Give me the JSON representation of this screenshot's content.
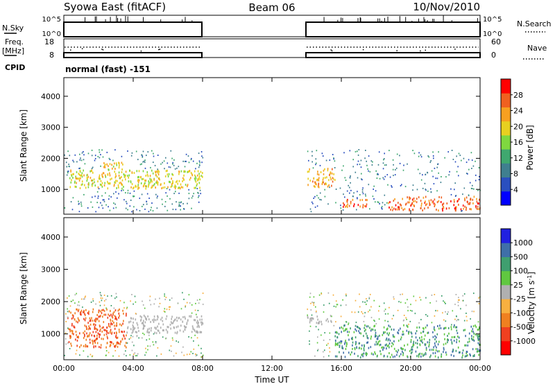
{
  "header": {
    "title_left": "Syowa East (fitACF)",
    "title_center": "Beam 06",
    "title_right": "10/Nov/2010"
  },
  "strips": {
    "nsky_label": "N.Sky",
    "nsearch_label": "N.Search",
    "nsky_ticks": [
      "10^5",
      "10^0"
    ],
    "nsearch_ticks": [
      "10^5",
      "10^0"
    ],
    "freq_label_line1": "Freq.",
    "freq_label_line2": "[MHz]",
    "freq_ticks": [
      "18",
      "8"
    ],
    "nave_label": "Nave",
    "nave_ticks": [
      "60",
      "0"
    ],
    "cpid_label": "CPID",
    "cpid_value": "normal (fast) -151"
  },
  "colors": {
    "power": [
      "#0000ff",
      "#2a4fbf",
      "#3f7f8f",
      "#3fa86f",
      "#7fd83f",
      "#e8d020",
      "#f8a020",
      "#f06020",
      "#ff0000"
    ],
    "velocity": [
      "#ff0000",
      "#f04020",
      "#f08020",
      "#f8b040",
      "#b0b0b0",
      "#60c840",
      "#3f9f6f",
      "#3f6fa8",
      "#2020e0"
    ],
    "ground_scatter": "#b0b0b0"
  },
  "chart_data": [
    {
      "type": "heatmap",
      "title": "",
      "xlabel": "Time UT",
      "ylabel": "Slant Range [km]",
      "xlim": [
        "00:00",
        "00:00"
      ],
      "x_ticks": [
        "00:00",
        "04:00",
        "08:00",
        "12:00",
        "16:00",
        "20:00",
        "00:00"
      ],
      "ylim": [
        200,
        4600
      ],
      "y_ticks": [
        1000,
        2000,
        3000,
        4000
      ],
      "colorbar": {
        "label": "Power [dB]",
        "ticks": [
          4,
          8,
          12,
          16,
          20,
          24,
          28
        ],
        "range": [
          0,
          30
        ]
      },
      "data_gaps": [
        {
          "start": "08:00",
          "end": "14:00"
        }
      ],
      "features": [
        {
          "t0": 0.3,
          "t1": 8.0,
          "r0": 1050,
          "r1": 1650,
          "level": 18
        },
        {
          "t0": 2.2,
          "t1": 3.4,
          "r0": 1400,
          "r1": 1900,
          "level": 20
        },
        {
          "t0": 14.0,
          "t1": 15.6,
          "r0": 1100,
          "r1": 1700,
          "level": 22
        },
        {
          "t0": 16.0,
          "t1": 17.6,
          "r0": 450,
          "r1": 700,
          "level": 26
        },
        {
          "t0": 18.6,
          "t1": 24.0,
          "r0": 350,
          "r1": 800,
          "level": 26
        }
      ]
    },
    {
      "type": "heatmap",
      "title": "",
      "xlabel": "Time UT",
      "ylabel": "Slant Range [km]",
      "xlim": [
        "00:00",
        "00:00"
      ],
      "x_ticks": [
        "00:00",
        "04:00",
        "08:00",
        "12:00",
        "16:00",
        "20:00",
        "00:00"
      ],
      "ylim": [
        200,
        4600
      ],
      "y_ticks": [
        1000,
        2000,
        3000,
        4000
      ],
      "colorbar": {
        "label": "Velocity [m s-1]",
        "ticks": [
          1000,
          500,
          100,
          25,
          -25,
          -100,
          -500,
          -1000
        ]
      },
      "data_gaps": [
        {
          "start": "08:00",
          "end": "14:00"
        }
      ],
      "features": [
        {
          "t0": 0.2,
          "t1": 3.6,
          "r0": 600,
          "r1": 1800,
          "level": -150
        },
        {
          "t0": 3.6,
          "t1": 8.0,
          "r0": 1050,
          "r1": 1600,
          "level": 0
        },
        {
          "t0": 14.0,
          "t1": 15.4,
          "r0": 1300,
          "r1": 1600,
          "level": 0
        },
        {
          "t0": 15.6,
          "t1": 24.0,
          "r0": 300,
          "r1": 1300,
          "level": 200
        }
      ]
    }
  ]
}
